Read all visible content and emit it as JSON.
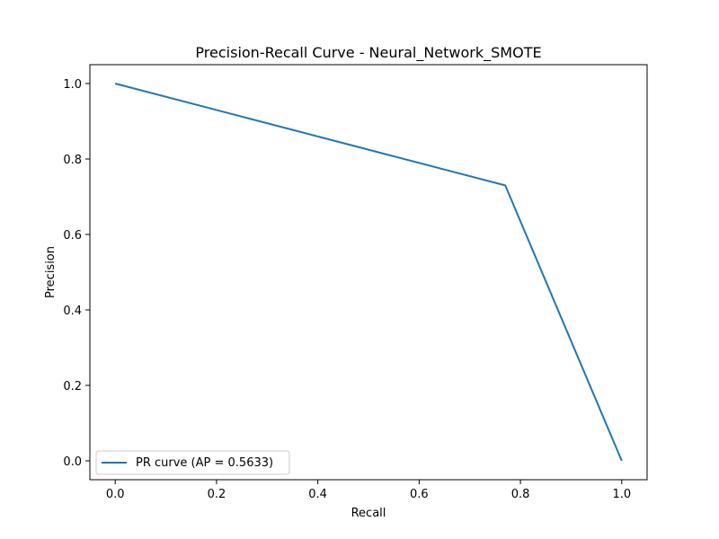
{
  "chart_data": {
    "type": "line",
    "title": "Precision-Recall Curve - Neural_Network_SMOTE",
    "xlabel": "Recall",
    "ylabel": "Precision",
    "xlim": [
      -0.05,
      1.05
    ],
    "ylim": [
      -0.05,
      1.05
    ],
    "x_ticks": [
      0.0,
      0.2,
      0.4,
      0.6,
      0.8,
      1.0
    ],
    "y_ticks": [
      0.0,
      0.2,
      0.4,
      0.6,
      0.8,
      1.0
    ],
    "x_tick_labels": [
      "0.0",
      "0.2",
      "0.4",
      "0.6",
      "0.8",
      "1.0"
    ],
    "y_tick_labels": [
      "0.0",
      "0.2",
      "0.4",
      "0.6",
      "0.8",
      "1.0"
    ],
    "grid": false,
    "legend_position": "lower-left",
    "series": [
      {
        "name": "PR curve (AP = 0.5633)",
        "color": "#1f77b4",
        "x": [
          0.0,
          0.77,
          1.0
        ],
        "y": [
          1.0,
          0.73,
          0.0
        ]
      }
    ]
  }
}
